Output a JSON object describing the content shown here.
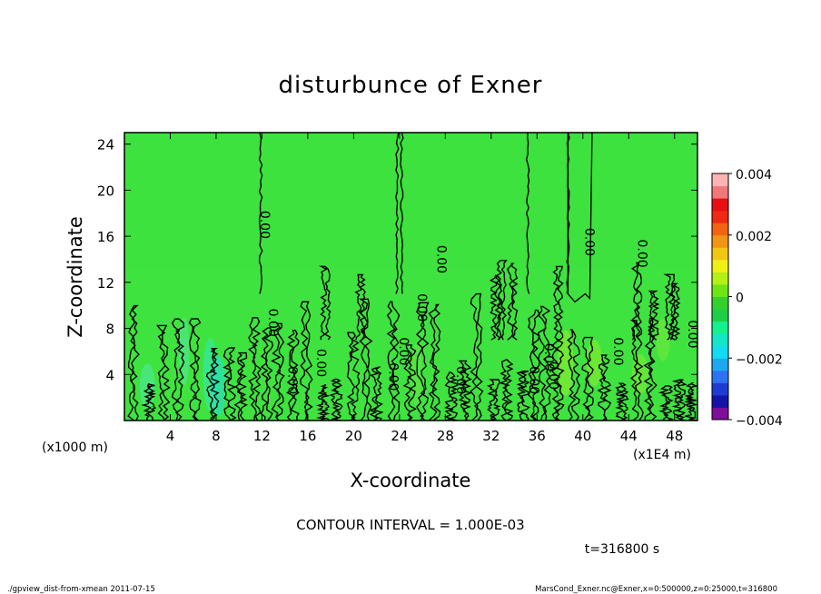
{
  "chart_data": {
    "type": "heatmap",
    "title": "disturbunce of Exner",
    "xlabel": "X-coordinate",
    "ylabel": "Z-coordinate",
    "x_unit_note": "(x1E4 m)",
    "z_unit_note": "(x1000 m)",
    "xlim": [
      0,
      50
    ],
    "ylim": [
      0,
      25
    ],
    "x_ticks": [
      "4",
      "8",
      "12",
      "16",
      "20",
      "24",
      "28",
      "32",
      "36",
      "40",
      "44",
      "48"
    ],
    "y_ticks": [
      "4",
      "8",
      "12",
      "16",
      "20",
      "24"
    ],
    "contour_interval_text": "CONTOUR INTERVAL = 1.000E-03",
    "contour_label": "0.00",
    "time_text": "t=316800 s",
    "colorbar": {
      "range": [
        -0.004,
        0.004
      ],
      "tick_labels": [
        "0.004",
        "0.002",
        "0",
        "−0.002",
        "−0.004"
      ],
      "colors": [
        "#7e0f9a",
        "#1414a8",
        "#1e3cd2",
        "#2c73f0",
        "#1ea8f0",
        "#14dcf0",
        "#14e6c8",
        "#14f08c",
        "#1ecf46",
        "#34d02e",
        "#6ee614",
        "#b4f014",
        "#f0f014",
        "#f0c814",
        "#f09614",
        "#f06414",
        "#f02814",
        "#e60f14",
        "#f07878",
        "#ffb4b4"
      ]
    },
    "field_color": "#3fe33f",
    "dominant_value": 0.0
  },
  "footer": {
    "left": "./gpview_dist-from-xmean  2011-07-15",
    "right": "MarsCond_Exner.nc@Exner,x=0:500000,z=0:25000,t=316800"
  }
}
